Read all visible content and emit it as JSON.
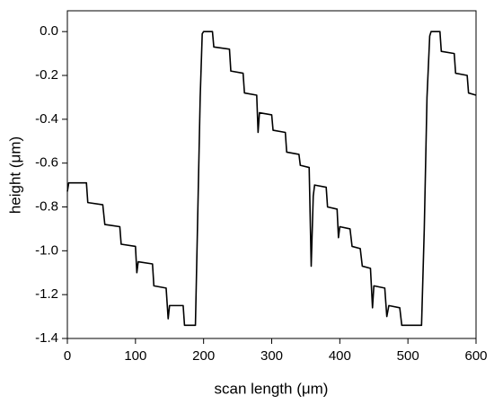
{
  "chart_data": {
    "type": "line",
    "xlabel": "scan length (μm)",
    "ylabel": "height (μm)",
    "xlim": [
      0,
      600
    ],
    "ylim": [
      -1.4,
      0.095
    ],
    "xticks": [
      0,
      100,
      200,
      300,
      400,
      500,
      600
    ],
    "yticks": [
      {
        "value": 0,
        "label": "0.0"
      },
      -0.2,
      -0.4,
      -0.6,
      -0.8,
      {
        "value": -1,
        "label": "-1.0"
      },
      -1.2,
      -1.4
    ],
    "grid": false,
    "series": [
      {
        "color": "#000000",
        "x": [
          0,
          2,
          28,
          30,
          52,
          55,
          77,
          79,
          100,
          102,
          104,
          125,
          127,
          145,
          148,
          150,
          170,
          172,
          188,
          191,
          195,
          198,
          200,
          213,
          215,
          238,
          240,
          258,
          260,
          278,
          280,
          282,
          300,
          302,
          320,
          322,
          340,
          342,
          355,
          358,
          361,
          363,
          380,
          382,
          396,
          398,
          400,
          415,
          418,
          430,
          433,
          445,
          448,
          450,
          466,
          469,
          472,
          488,
          491,
          520,
          524,
          528,
          532,
          534,
          547,
          549,
          568,
          570,
          587,
          589,
          600
        ],
        "values": [
          -0.73,
          -0.69,
          -0.69,
          -0.78,
          -0.79,
          -0.88,
          -0.89,
          -0.97,
          -0.98,
          -1.1,
          -1.05,
          -1.06,
          -1.16,
          -1.17,
          -1.31,
          -1.25,
          -1.25,
          -1.34,
          -1.34,
          -0.9,
          -0.3,
          -0.01,
          0.0,
          0.0,
          -0.07,
          -0.08,
          -0.18,
          -0.19,
          -0.28,
          -0.29,
          -0.46,
          -0.37,
          -0.38,
          -0.45,
          -0.46,
          -0.55,
          -0.56,
          -0.61,
          -0.62,
          -1.07,
          -0.75,
          -0.7,
          -0.71,
          -0.8,
          -0.81,
          -0.94,
          -0.89,
          -0.9,
          -0.98,
          -0.99,
          -1.07,
          -1.08,
          -1.26,
          -1.16,
          -1.17,
          -1.3,
          -1.25,
          -1.26,
          -1.34,
          -1.34,
          -0.9,
          -0.3,
          -0.02,
          0.0,
          0.0,
          -0.09,
          -0.1,
          -0.19,
          -0.2,
          -0.28,
          -0.29
        ]
      }
    ]
  }
}
